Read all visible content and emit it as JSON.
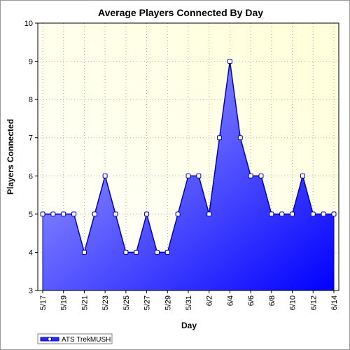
{
  "chart_data": {
    "type": "area",
    "title": "Average Players Connected By Day",
    "xlabel": "Day",
    "ylabel": "Players Connected",
    "ylim": [
      3,
      10
    ],
    "yticks": [
      "3",
      "4",
      "5",
      "6",
      "7",
      "8",
      "9",
      "10"
    ],
    "x": [
      "5/17",
      "5/18",
      "5/19",
      "5/20",
      "5/21",
      "5/22",
      "5/23",
      "5/24",
      "5/25",
      "5/26",
      "5/27",
      "5/28",
      "5/29",
      "5/30",
      "5/31",
      "6/1",
      "6/2",
      "6/3",
      "6/4",
      "6/5",
      "6/6",
      "6/7",
      "6/8",
      "6/9",
      "6/10",
      "6/11",
      "6/12",
      "6/13",
      "6/14"
    ],
    "xtick_labels": [
      "5/17",
      "5/19",
      "5/21",
      "5/23",
      "5/25",
      "5/27",
      "5/29",
      "5/31",
      "6/2",
      "6/4",
      "6/6",
      "6/8",
      "6/10",
      "6/12",
      "6/14"
    ],
    "series": [
      {
        "name": "ATS TrekMUSH",
        "values": [
          5,
          5,
          5,
          5,
          4,
          5,
          6,
          5,
          4,
          4,
          5,
          4,
          4,
          5,
          6,
          6,
          5,
          7,
          9,
          7,
          6,
          6,
          5,
          5,
          5,
          6,
          5,
          5,
          5
        ]
      }
    ],
    "grid": true,
    "legend_position": "bottom-left",
    "colors": {
      "plot_background_top": "#ffffd8",
      "plot_background_bottom": "#ffffff",
      "area_light": "#b4b4ff",
      "area_dark": "#0000ff",
      "line": "#0000c8",
      "marker_fill": "#ffffff",
      "grid": "#b0b0b0"
    }
  }
}
